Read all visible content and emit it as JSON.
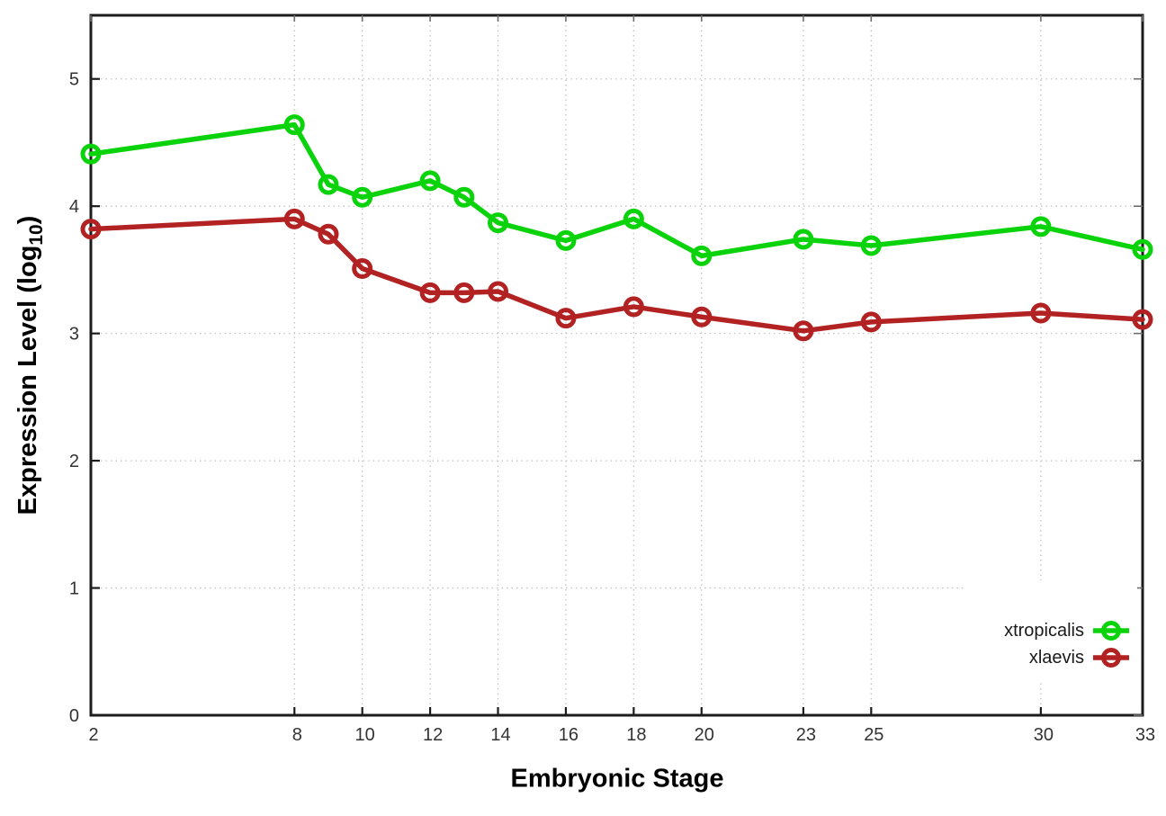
{
  "chart_data": {
    "type": "line",
    "title": "",
    "xlabel": "Embryonic Stage",
    "ylabel": "Expression Level (log10)",
    "ylabel_parts": {
      "pre": "Expression Level (log",
      "sub": "10",
      "post": ")"
    },
    "x": [
      2,
      8,
      9,
      10,
      12,
      13,
      14,
      16,
      18,
      20,
      23,
      25,
      30,
      33
    ],
    "x_tick_labels": [
      2,
      8,
      10,
      12,
      14,
      16,
      18,
      20,
      23,
      25,
      30,
      33
    ],
    "y_ticks": [
      0,
      1,
      2,
      3,
      4,
      5
    ],
    "xlim": [
      2,
      33
    ],
    "ylim": [
      0,
      5.5
    ],
    "grid": true,
    "legend_position": "bottom-right",
    "series": [
      {
        "name": "xtropicalis",
        "color": "#0bd30b",
        "values": [
          4.41,
          4.64,
          4.17,
          4.07,
          4.2,
          4.07,
          3.87,
          3.73,
          3.9,
          3.61,
          3.74,
          3.69,
          3.84,
          3.66
        ]
      },
      {
        "name": "xlaevis",
        "color": "#b22222",
        "values": [
          3.82,
          3.9,
          3.78,
          3.51,
          3.32,
          3.32,
          3.33,
          3.12,
          3.21,
          3.13,
          3.02,
          3.09,
          3.16,
          3.11
        ]
      }
    ]
  },
  "colors": {
    "background": "#ffffff",
    "axis": "#1c1c1c",
    "grid": "#c3c3c3",
    "tick_label": "#333333",
    "mirror_tick": "#6e6e6e",
    "legend_text": "#1a1a1a"
  }
}
